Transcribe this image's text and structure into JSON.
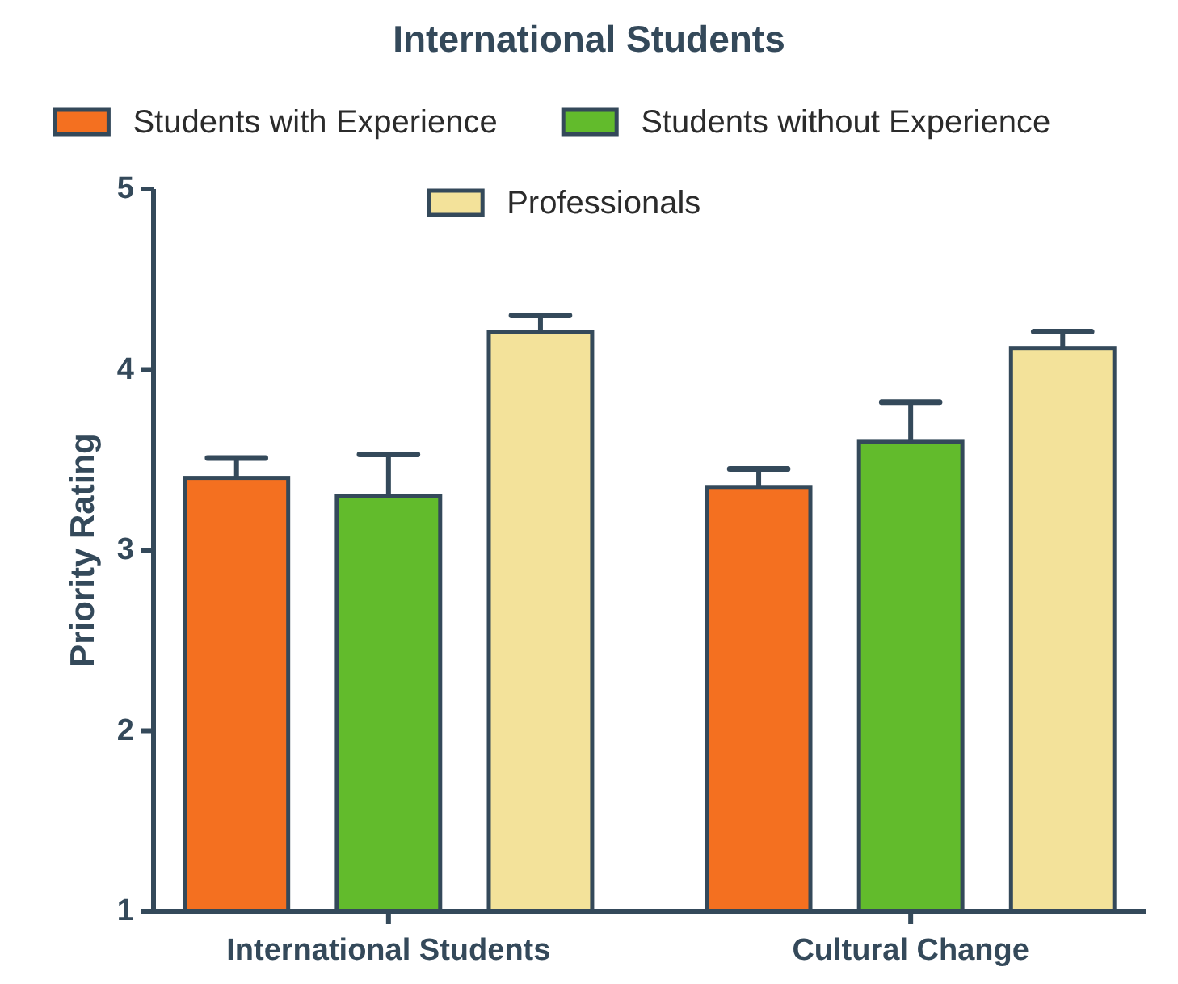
{
  "chart_data": {
    "type": "bar",
    "title": "International  Students",
    "ylabel": "Priority Rating",
    "categories": [
      "International Students",
      "Cultural Change"
    ],
    "series": [
      {
        "name": "Students with Experience",
        "color": "#f47020",
        "values": [
          3.4,
          3.35
        ],
        "errors": [
          [
            3.4,
            3.51
          ],
          [
            3.35,
            3.45
          ]
        ]
      },
      {
        "name": "Students without Experience",
        "color": "#62bb2c",
        "values": [
          3.3,
          3.6
        ],
        "errors": [
          [
            3.3,
            3.53
          ],
          [
            3.6,
            3.82
          ]
        ]
      },
      {
        "name": "Professionals",
        "color": "#f3e29a",
        "values": [
          4.21,
          4.12
        ],
        "errors": [
          [
            4.21,
            4.3
          ],
          [
            4.12,
            4.21
          ]
        ]
      }
    ],
    "ylim": [
      1,
      5
    ],
    "yticks": [
      1,
      2,
      3,
      4,
      5
    ],
    "grid": false,
    "legend": "top"
  }
}
